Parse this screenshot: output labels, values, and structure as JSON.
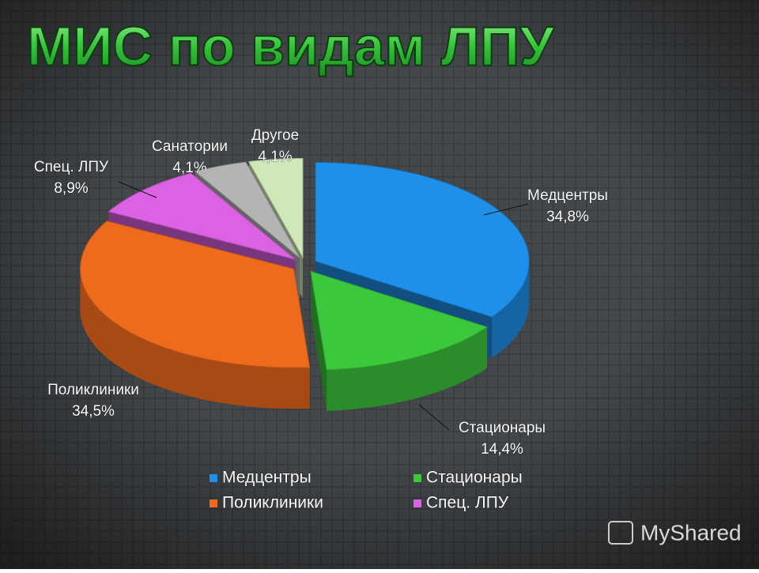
{
  "chart_data": {
    "type": "pie3d",
    "title": "МИС по видам ЛПУ",
    "categories": [
      "Медцентры",
      "Стационары",
      "Поликлиники",
      "Спец. ЛПУ",
      "Санатории",
      "Другое"
    ],
    "values": [
      34.8,
      14.4,
      34.5,
      8.9,
      4.1,
      4.1
    ],
    "value_labels": [
      "34,8%",
      "14,4%",
      "34,5%",
      "8,9%",
      "4,1%",
      "4,1%"
    ],
    "colors": [
      "#1e90ea",
      "#3cc83c",
      "#ee6a1c",
      "#dc62e4",
      "#b4b4b4",
      "#cfe8b8"
    ],
    "legend_entries": [
      "Медцентры",
      "Стационары",
      "Поликлиники",
      "Спец. ЛПУ"
    ],
    "legend": "bottom"
  },
  "watermark": "MyShared"
}
